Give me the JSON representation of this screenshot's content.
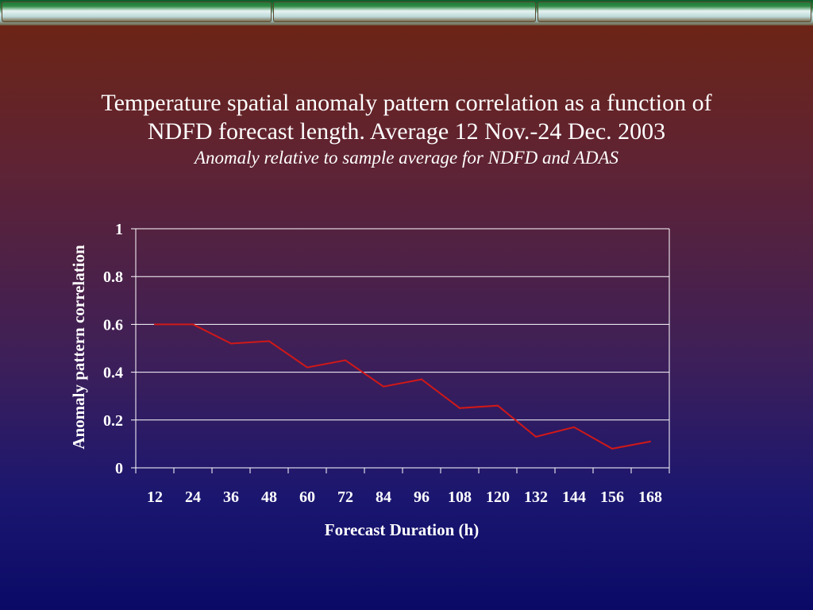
{
  "title_line1": "Temperature spatial anomaly pattern correlation as a function of",
  "title_line2": "NDFD forecast length. Average 12 Nov.-24 Dec. 2003",
  "subtitle": "Anomaly relative to sample average for NDFD and ADAS",
  "colors": {
    "line": "#d01818",
    "grid": "#ffffff"
  },
  "chart_data": {
    "type": "line",
    "xlabel": "Forecast Duration (h)",
    "ylabel": "Anomaly pattern correlation",
    "categories": [
      "12",
      "24",
      "36",
      "48",
      "60",
      "72",
      "84",
      "96",
      "108",
      "120",
      "132",
      "144",
      "156",
      "168"
    ],
    "series": [
      {
        "values": [
          0.6,
          0.6,
          0.52,
          0.53,
          0.42,
          0.45,
          0.34,
          0.37,
          0.25,
          0.26,
          0.13,
          0.17,
          0.08,
          0.11
        ]
      }
    ],
    "yticks": [
      "0",
      "0.2",
      "0.4",
      "0.6",
      "0.8",
      "1"
    ],
    "ylim": [
      0,
      1
    ],
    "grid": true,
    "legend": false
  }
}
